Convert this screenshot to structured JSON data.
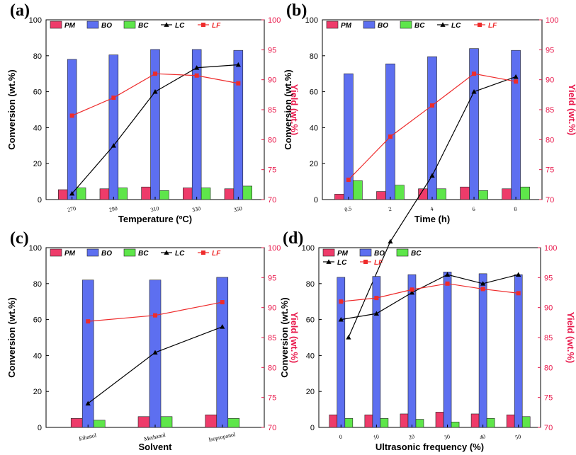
{
  "colors": {
    "PM": "#ee3b6a",
    "BO": "#5d6ff0",
    "BC": "#5ee64a",
    "LC": "#000000",
    "LF": "#ee2b2b",
    "right_axis": "#e8174a"
  },
  "legend_labels": [
    "PM",
    "BO",
    "BC",
    "LC",
    "LF"
  ],
  "chart_data": [
    {
      "panel": "(a)",
      "type": "bar",
      "categories": [
        "270",
        "290",
        "310",
        "330",
        "350"
      ],
      "series": [
        {
          "name": "PM",
          "values": [
            5.5,
            6.0,
            7.0,
            6.5,
            6.0
          ]
        },
        {
          "name": "BO",
          "values": [
            78.0,
            80.5,
            83.5,
            83.5,
            83.0
          ]
        },
        {
          "name": "BC",
          "values": [
            6.5,
            6.5,
            5.0,
            6.5,
            7.5
          ]
        },
        {
          "name": "LC",
          "values": [
            71.0,
            79.0,
            88.0,
            92.0,
            92.5
          ]
        },
        {
          "name": "LF",
          "values": [
            84.0,
            87.0,
            91.0,
            90.7,
            89.4
          ]
        }
      ],
      "xlabel": "Temperature (ºC)",
      "ylabel": "Conversion (wt.%)",
      "y2label": "Yield (wt.%)",
      "ylim": [
        0,
        100
      ],
      "y2lim": [
        70,
        100
      ],
      "yticks": [
        0,
        20,
        40,
        60,
        80,
        100
      ],
      "y2ticks": [
        70,
        75,
        80,
        85,
        90,
        95,
        100
      ],
      "legend": "top"
    },
    {
      "panel": "(b)",
      "type": "bar",
      "categories": [
        "0.5",
        "2",
        "4",
        "6",
        "8"
      ],
      "series": [
        {
          "name": "PM",
          "values": [
            3.0,
            4.5,
            6.0,
            7.0,
            6.0
          ]
        },
        {
          "name": "BO",
          "values": [
            70.0,
            75.5,
            79.5,
            84.0,
            83.0
          ]
        },
        {
          "name": "BC",
          "values": [
            10.5,
            8.0,
            6.0,
            5.0,
            7.0
          ]
        },
        {
          "name": "LC",
          "values": [
            47.0,
            63.0,
            74.0,
            88.0,
            90.5
          ]
        },
        {
          "name": "LF",
          "values": [
            73.3,
            80.5,
            85.7,
            91.0,
            89.7
          ]
        }
      ],
      "xlabel": "Time (h)",
      "ylabel": "Conversion (wt.%)",
      "y2label": "Yield (wt.%)",
      "ylim": [
        0,
        100
      ],
      "y2lim": [
        70,
        100
      ],
      "yticks": [
        0,
        20,
        40,
        60,
        80,
        100
      ],
      "y2ticks": [
        70,
        75,
        80,
        85,
        90,
        95,
        100
      ],
      "legend": "top"
    },
    {
      "panel": "(c)",
      "type": "bar",
      "categories": [
        "Ethanol",
        "Methanol",
        "Isopropanol"
      ],
      "series": [
        {
          "name": "PM",
          "values": [
            5.0,
            6.0,
            7.0
          ]
        },
        {
          "name": "BO",
          "values": [
            82.0,
            82.0,
            83.5
          ]
        },
        {
          "name": "BC",
          "values": [
            4.0,
            6.0,
            5.0
          ]
        },
        {
          "name": "LC",
          "values": [
            74.0,
            82.5,
            86.8
          ]
        },
        {
          "name": "LF",
          "values": [
            87.7,
            88.7,
            90.9
          ]
        }
      ],
      "xlabel": "Solvent",
      "ylabel": "Conversion (wt.%)",
      "y2label": "Yield (wt.%)",
      "ylim": [
        0,
        100
      ],
      "y2lim": [
        70,
        100
      ],
      "yticks": [
        0,
        20,
        40,
        60,
        80,
        100
      ],
      "y2ticks": [
        70,
        75,
        80,
        85,
        90,
        95,
        100
      ],
      "legend": "top"
    },
    {
      "panel": "(d)",
      "type": "bar",
      "categories": [
        "0",
        "10",
        "20",
        "30",
        "40",
        "50"
      ],
      "series": [
        {
          "name": "PM",
          "values": [
            7.0,
            7.0,
            7.5,
            8.5,
            7.5,
            7.0
          ]
        },
        {
          "name": "BO",
          "values": [
            83.5,
            84.0,
            85.0,
            86.5,
            85.5,
            85.0
          ]
        },
        {
          "name": "BC",
          "values": [
            5.0,
            5.0,
            4.5,
            3.0,
            5.0,
            6.0
          ]
        },
        {
          "name": "LC",
          "values": [
            88.0,
            89.0,
            92.5,
            95.5,
            94.0,
            95.5
          ]
        },
        {
          "name": "LF",
          "values": [
            91.0,
            91.6,
            93.0,
            94.0,
            93.1,
            92.4
          ]
        }
      ],
      "xlabel": "Ultrasonic frequency (%)",
      "ylabel": "Conversion (wt.%)",
      "y2label": "Yield (wt.%)",
      "ylim": [
        0,
        100
      ],
      "y2lim": [
        70,
        100
      ],
      "yticks": [
        0,
        20,
        40,
        60,
        80,
        100
      ],
      "y2ticks": [
        70,
        75,
        80,
        85,
        90,
        95,
        100
      ],
      "legend": "top, two rows"
    }
  ]
}
